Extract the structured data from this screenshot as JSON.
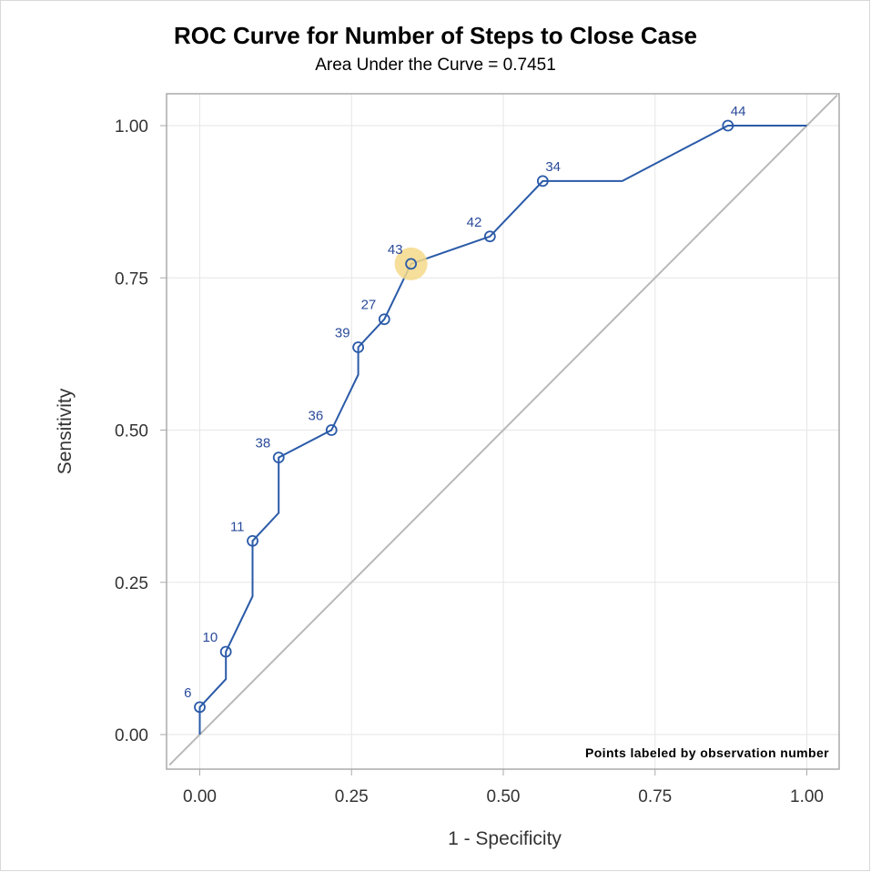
{
  "chart_data": {
    "type": "line",
    "title": "ROC Curve for Number of Steps to Close Case",
    "subtitle": "Area Under the Curve = 0.7451",
    "xlabel": "1 - Specificity",
    "ylabel": "Sensitivity",
    "xlim": [
      -0.05,
      1.05
    ],
    "ylim": [
      -0.05,
      1.05
    ],
    "xticks": [
      "0.00",
      "0.25",
      "0.50",
      "0.75",
      "1.00"
    ],
    "yticks": [
      "0.00",
      "0.25",
      "0.50",
      "0.75",
      "1.00"
    ],
    "grid": true,
    "note": "Points labeled by observation number",
    "curve": [
      {
        "x": 0.0,
        "y": 0.0
      },
      {
        "x": 0.0,
        "y": 0.045
      },
      {
        "x": 0.043,
        "y": 0.091
      },
      {
        "x": 0.043,
        "y": 0.136
      },
      {
        "x": 0.087,
        "y": 0.227
      },
      {
        "x": 0.087,
        "y": 0.318
      },
      {
        "x": 0.13,
        "y": 0.364
      },
      {
        "x": 0.13,
        "y": 0.455
      },
      {
        "x": 0.217,
        "y": 0.5
      },
      {
        "x": 0.261,
        "y": 0.591
      },
      {
        "x": 0.261,
        "y": 0.636
      },
      {
        "x": 0.304,
        "y": 0.682
      },
      {
        "x": 0.348,
        "y": 0.773
      },
      {
        "x": 0.478,
        "y": 0.818
      },
      {
        "x": 0.565,
        "y": 0.909
      },
      {
        "x": 0.696,
        "y": 0.909
      },
      {
        "x": 0.87,
        "y": 1.0
      },
      {
        "x": 1.0,
        "y": 1.0
      }
    ],
    "labeled_points": [
      {
        "label": "6",
        "x": 0.0,
        "y": 0.045
      },
      {
        "label": "10",
        "x": 0.043,
        "y": 0.136
      },
      {
        "label": "11",
        "x": 0.087,
        "y": 0.318
      },
      {
        "label": "38",
        "x": 0.13,
        "y": 0.455
      },
      {
        "label": "36",
        "x": 0.217,
        "y": 0.5
      },
      {
        "label": "39",
        "x": 0.261,
        "y": 0.636
      },
      {
        "label": "27",
        "x": 0.304,
        "y": 0.682
      },
      {
        "label": "43",
        "x": 0.348,
        "y": 0.773,
        "highlight": true
      },
      {
        "label": "42",
        "x": 0.478,
        "y": 0.818
      },
      {
        "label": "34",
        "x": 0.565,
        "y": 0.909
      },
      {
        "label": "44",
        "x": 0.87,
        "y": 1.0
      }
    ],
    "reference_line": [
      {
        "x": 0,
        "y": 0
      },
      {
        "x": 1,
        "y": 1
      }
    ],
    "colors": {
      "curve": "#2a5aa8",
      "label": "#2a4a9a",
      "reference": "#b8b8b8",
      "highlight": "#f5d98a",
      "grid": "#e6e6e6",
      "axis": "#aaaaaa"
    }
  }
}
